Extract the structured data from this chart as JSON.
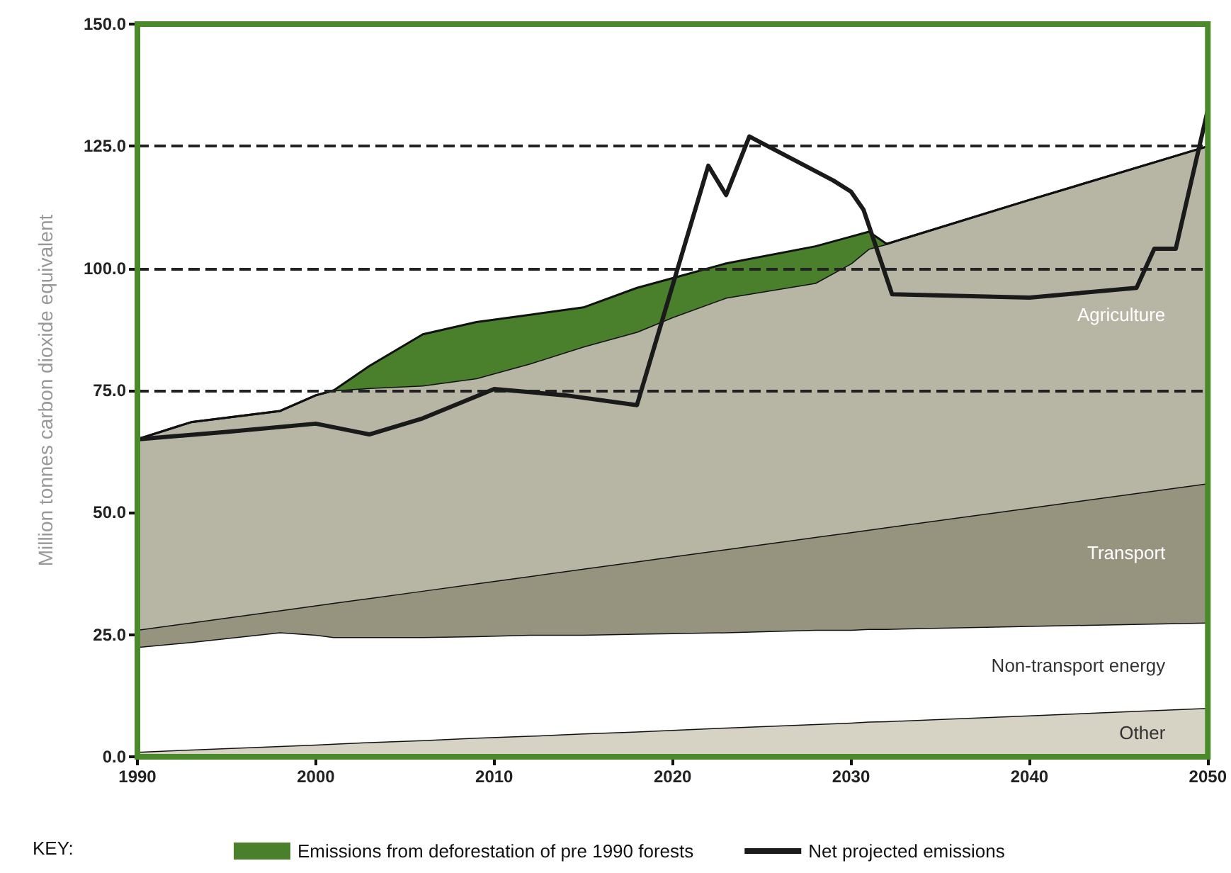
{
  "chart_data": {
    "type": "area",
    "stacked": true,
    "ylabel": "Million tonnes carbon dioxide equivalent",
    "x": [
      1990,
      1993,
      1998,
      2000,
      2001,
      2003,
      2006,
      2009,
      2012,
      2015,
      2018,
      2020,
      2023,
      2028,
      2030,
      2031,
      2032,
      2040,
      2050
    ],
    "series": [
      {
        "name": "Other",
        "color": "#d6d3c4",
        "values": [
          1.0,
          1.5,
          2.2,
          2.5,
          2.7,
          3.0,
          3.4,
          3.9,
          4.3,
          4.8,
          5.2,
          5.5,
          6.0,
          6.7,
          7.0,
          7.2,
          7.3,
          8.5,
          10.0
        ]
      },
      {
        "name": "Non-transport energy",
        "color": "#ffffff",
        "values": [
          21.5,
          22.0,
          23.3,
          22.5,
          21.8,
          21.5,
          21.1,
          20.8,
          20.7,
          20.2,
          20.0,
          19.8,
          19.5,
          19.3,
          19.0,
          19.0,
          18.9,
          18.3,
          17.5
        ]
      },
      {
        "name": "Transport",
        "color": "#96937f",
        "values": [
          3.5,
          4.0,
          4.5,
          6.0,
          7.0,
          8.0,
          9.5,
          10.8,
          12.0,
          13.5,
          14.8,
          15.7,
          17.0,
          19.0,
          20.0,
          20.3,
          20.8,
          24.2,
          28.5
        ]
      },
      {
        "name": "Agriculture",
        "color": "#b7b5a3",
        "values": [
          39.0,
          41.0,
          40.8,
          43.0,
          43.5,
          43.0,
          42.0,
          42.0,
          43.5,
          45.5,
          47.0,
          49.0,
          51.5,
          52.0,
          55.0,
          57.5,
          58.0,
          63.0,
          69.0
        ]
      },
      {
        "name": "Emissions from deforestation of pre 1990 forests",
        "color": "#4a7f2c",
        "values": [
          0,
          0,
          0,
          0,
          0,
          4.5,
          10.5,
          11.5,
          10.0,
          8.0,
          9.0,
          8.0,
          7.0,
          7.5,
          5.5,
          3.5,
          0,
          0,
          0
        ]
      },
      {
        "name": "Net projected emissions",
        "type": "line",
        "color": "#1a1a1a",
        "x": [
          1990,
          1995,
          2000,
          2003,
          2006,
          2010,
          2014,
          2018,
          2022,
          2023,
          2024.3,
          2029,
          2030,
          2030.7,
          2032.3,
          2040,
          2046,
          2047,
          2048.2,
          2050
        ],
        "values": [
          65,
          66.5,
          68.2,
          66,
          69.3,
          75.3,
          74,
          72,
          121,
          115,
          127,
          118,
          115.7,
          112,
          94.7,
          94,
          96,
          104,
          104,
          132.5
        ]
      }
    ],
    "xlim": [
      1990,
      2050
    ],
    "xticks": [
      1990,
      2000,
      2010,
      2020,
      2030,
      2040,
      2050
    ],
    "ylim": [
      0,
      150
    ],
    "yticks": [
      {
        "value": 0,
        "label": "0.0"
      },
      {
        "value": 25,
        "label": "25.0"
      },
      {
        "value": 50,
        "label": "50.0"
      },
      {
        "value": 75,
        "label": "75.0"
      },
      {
        "value": 100,
        "label": "100.0"
      },
      {
        "value": 125,
        "label": "125.0"
      },
      {
        "value": 150,
        "label": "150.0"
      }
    ],
    "ref_lines": [
      {
        "axis": "y",
        "value": 75,
        "color": "#222222",
        "line_style": "dashed"
      },
      {
        "axis": "y",
        "value": 100,
        "color": "#222222",
        "line_style": "dashed"
      },
      {
        "axis": "y",
        "value": 125,
        "color": "#222222",
        "line_style": "dashed"
      }
    ],
    "legend": "bottom",
    "legend_title": "KEY:",
    "grid": false,
    "marker": "none",
    "line_style": "solid"
  }
}
